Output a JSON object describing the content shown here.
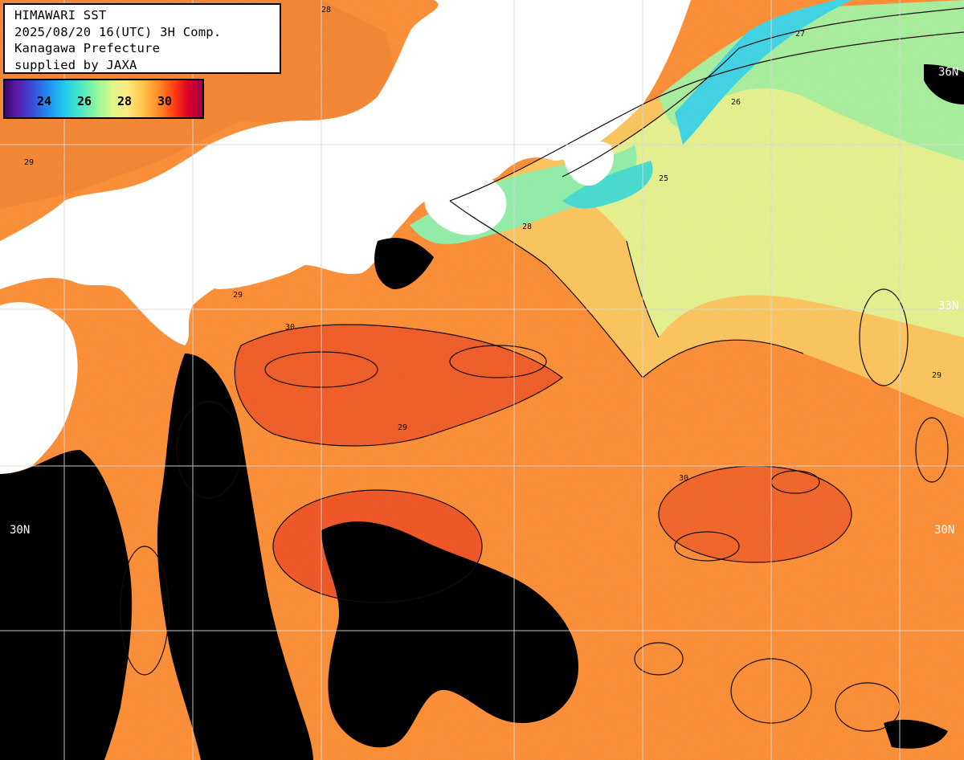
{
  "header": {
    "line1": "HIMAWARI SST",
    "line2": "2025/08/20 16(UTC) 3H Comp.",
    "line3": "Kanagawa Prefecture",
    "line4": "supplied by JAXA"
  },
  "scale": {
    "ticks": [
      "24",
      "26",
      "28",
      "30"
    ]
  },
  "lat_labels": {
    "north_36_right": "36N",
    "north_33_right": "33N",
    "north_30_left": "30N",
    "north_30_right": "30N"
  },
  "contour_labels": [
    "28",
    "29",
    "30",
    "27",
    "26",
    "25"
  ],
  "colors": {
    "land": "#ffffff",
    "cloud": "#000000",
    "sst_30": "#ff5a14",
    "sst_29": "#ff8c2c",
    "sst_28": "#ffc45a",
    "sst_27": "#e8f58a",
    "sst_26": "#8ef0a8",
    "sst_25": "#30d4e8",
    "grid": "#d0d0d0"
  }
}
